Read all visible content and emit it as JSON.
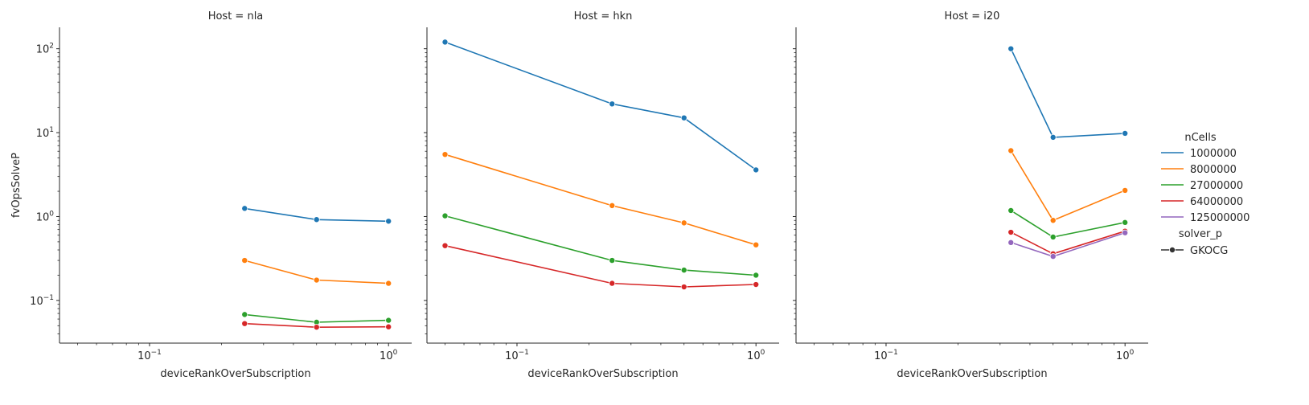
{
  "chart_data": {
    "type": "line",
    "ylabel": "fvOpsSolveP",
    "xscale": "log",
    "yscale": "log",
    "xlim": [
      0.042,
      1.25
    ],
    "ylim": [
      0.031,
      180
    ],
    "x_ticks": [
      {
        "value": 0.1,
        "base": "10",
        "exp": "−1"
      },
      {
        "value": 1,
        "base": "10",
        "exp": "0"
      }
    ],
    "y_ticks": [
      {
        "value": 0.1,
        "base": "10",
        "exp": "−1"
      },
      {
        "value": 1,
        "base": "10",
        "exp": "0"
      },
      {
        "value": 10,
        "base": "10",
        "exp": "1"
      },
      {
        "value": 100,
        "base": "10",
        "exp": "2"
      }
    ],
    "colors": {
      "1000000": "#1f77b4",
      "8000000": "#ff7f0e",
      "27000000": "#2ca02c",
      "64000000": "#d62728",
      "125000000": "#9467bd"
    },
    "legend": {
      "title": "nCells",
      "position": "right",
      "entries": [
        "1000000",
        "8000000",
        "27000000",
        "64000000",
        "125000000"
      ],
      "style_title": "solver_p",
      "style_entries": [
        "GKOCG"
      ]
    },
    "panels": [
      {
        "title": "Host = nla",
        "xlabel": "deviceRankOverSubscription",
        "series": [
          {
            "name": "1000000",
            "x": [
              0.25,
              0.5,
              1.0
            ],
            "y": [
              1.25,
              0.92,
              0.88
            ]
          },
          {
            "name": "8000000",
            "x": [
              0.25,
              0.5,
              1.0
            ],
            "y": [
              0.3,
              0.175,
              0.16
            ]
          },
          {
            "name": "27000000",
            "x": [
              0.25,
              0.5,
              1.0
            ],
            "y": [
              0.068,
              0.055,
              0.058
            ]
          },
          {
            "name": "64000000",
            "x": [
              0.25,
              0.5,
              1.0
            ],
            "y": [
              0.053,
              0.048,
              0.0485
            ]
          }
        ]
      },
      {
        "title": "Host = hkn",
        "xlabel": "deviceRankOverSubscription",
        "series": [
          {
            "name": "1000000",
            "x": [
              0.05,
              0.25,
              0.5,
              1.0
            ],
            "y": [
              120,
              22,
              15,
              3.6
            ]
          },
          {
            "name": "8000000",
            "x": [
              0.05,
              0.25,
              0.5,
              1.0
            ],
            "y": [
              5.5,
              1.35,
              0.84,
              0.46
            ]
          },
          {
            "name": "27000000",
            "x": [
              0.05,
              0.25,
              0.5,
              1.0
            ],
            "y": [
              1.02,
              0.3,
              0.23,
              0.2
            ]
          },
          {
            "name": "64000000",
            "x": [
              0.05,
              0.25,
              0.5,
              1.0
            ],
            "y": [
              0.45,
              0.16,
              0.145,
              0.155
            ]
          }
        ]
      },
      {
        "title": "Host = i20",
        "xlabel": "deviceRankOverSubscription",
        "series": [
          {
            "name": "1000000",
            "x": [
              0.333,
              0.5,
              1.0
            ],
            "y": [
              100,
              8.8,
              9.8
            ]
          },
          {
            "name": "8000000",
            "x": [
              0.333,
              0.5,
              1.0
            ],
            "y": [
              6.1,
              0.9,
              2.05
            ]
          },
          {
            "name": "27000000",
            "x": [
              0.333,
              0.5,
              1.0
            ],
            "y": [
              1.18,
              0.57,
              0.85
            ]
          },
          {
            "name": "64000000",
            "x": [
              0.333,
              0.5,
              1.0
            ],
            "y": [
              0.65,
              0.36,
              0.67
            ]
          },
          {
            "name": "125000000",
            "x": [
              0.333,
              0.5,
              1.0
            ],
            "y": [
              0.49,
              0.335,
              0.64
            ]
          }
        ]
      }
    ]
  }
}
